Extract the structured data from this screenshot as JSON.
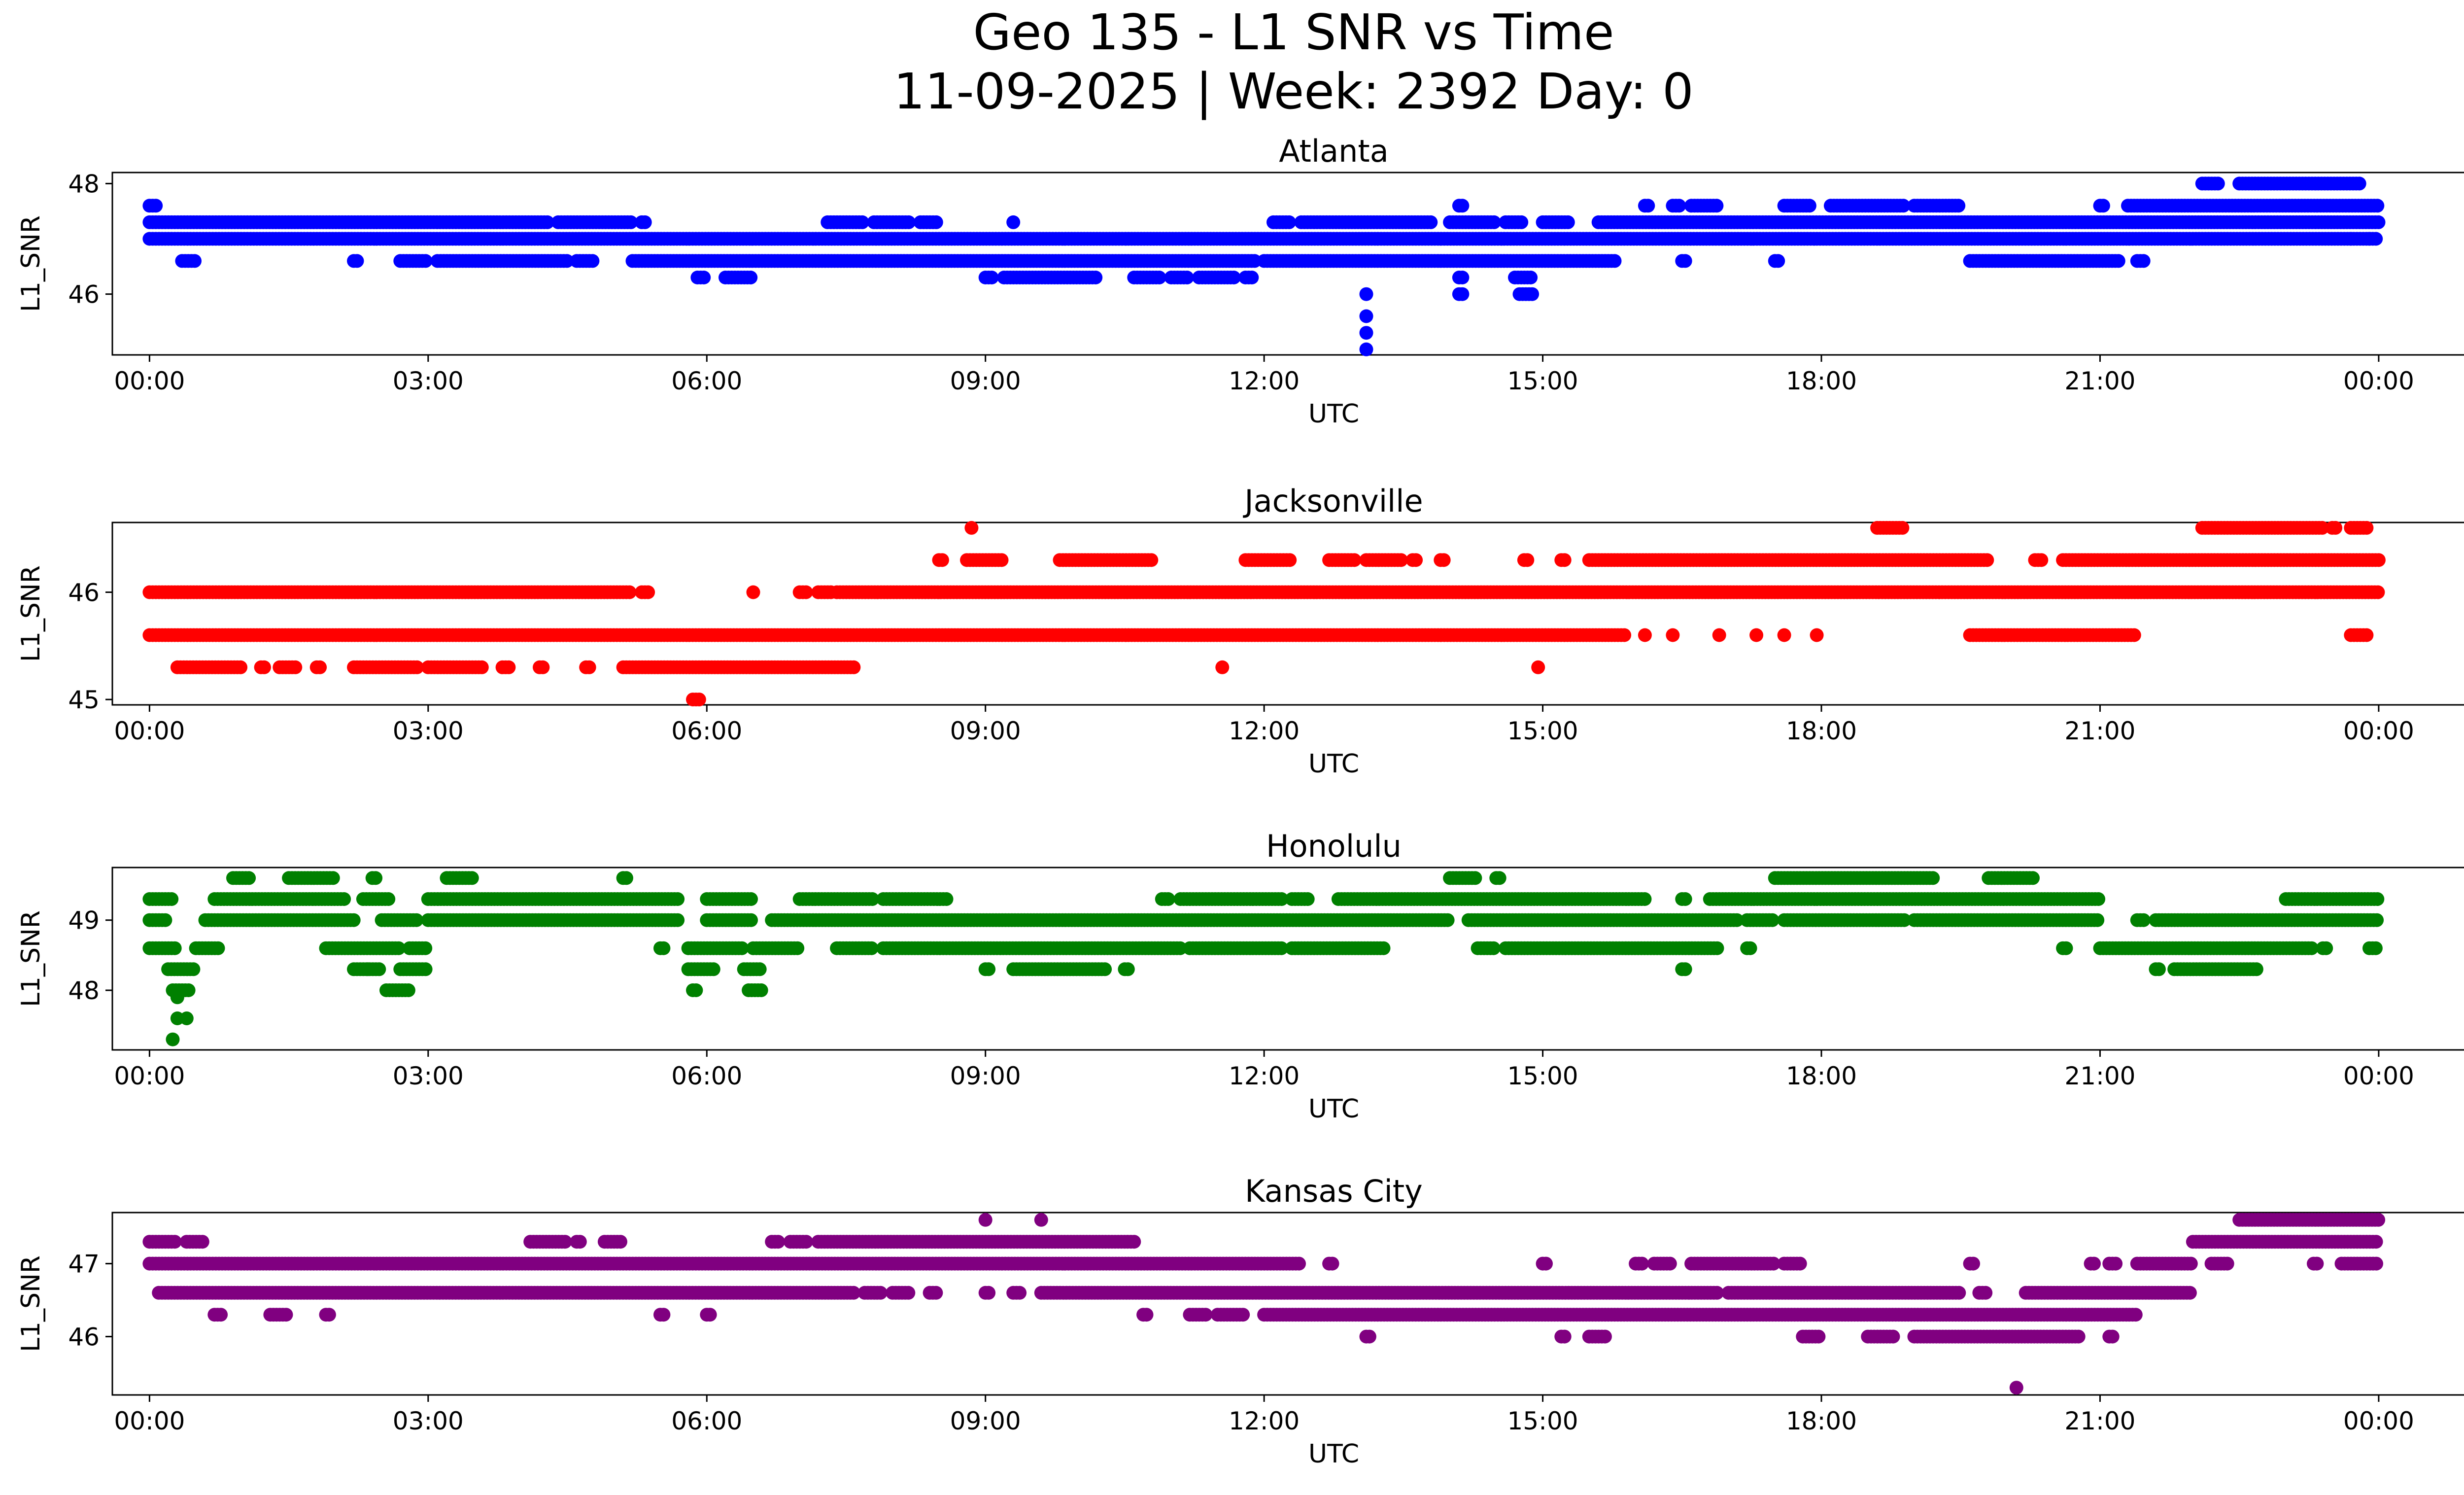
{
  "figure": {
    "title_line1": "Geo 135 - L1 SNR vs Time",
    "title_line2": "11-09-2025 | Week: 2392 Day: 0"
  },
  "chart_data": [
    {
      "type": "scatter",
      "title": "Atlanta",
      "xlabel": "UTC",
      "ylabel": "L1_SNR",
      "color": "#0000ff",
      "xlim_hours": [
        -0.4,
        25.9
      ],
      "ylim": [
        44.9,
        48.2
      ],
      "xticks": [
        0,
        3,
        6,
        9,
        12,
        15,
        18,
        21,
        24
      ],
      "xtick_labels": [
        "00:00",
        "03:00",
        "06:00",
        "09:00",
        "12:00",
        "15:00",
        "18:00",
        "21:00",
        "00:00"
      ],
      "yticks": [
        46,
        48
      ],
      "ytick_labels": [
        "46",
        "48"
      ],
      "bands": [
        {
          "y": 47.0,
          "segments": [
            [
              0.0,
              24.0
            ]
          ]
        },
        {
          "y": 47.3,
          "segments": [
            [
              0.0,
              4.3
            ],
            [
              4.4,
              5.2
            ],
            [
              5.3,
              5.35
            ],
            [
              7.3,
              7.7
            ],
            [
              7.8,
              8.2
            ],
            [
              8.3,
              8.5
            ],
            [
              12.1,
              12.3
            ],
            [
              12.4,
              13.8
            ],
            [
              14.0,
              14.5
            ],
            [
              14.6,
              14.8
            ],
            [
              15.0,
              15.3
            ],
            [
              15.6,
              24.0
            ]
          ]
        },
        {
          "y": 46.6,
          "segments": [
            [
              0.35,
              0.5
            ],
            [
              2.2,
              2.25
            ],
            [
              2.7,
              3.0
            ],
            [
              3.1,
              4.5
            ],
            [
              4.6,
              4.8
            ],
            [
              5.2,
              11.9
            ],
            [
              12.0,
              15.8
            ],
            [
              16.5,
              16.55
            ],
            [
              17.5,
              17.55
            ],
            [
              19.6,
              21.2
            ],
            [
              21.4,
              21.5
            ]
          ]
        },
        {
          "y": 46.3,
          "segments": [
            [
              5.9,
              6.0
            ],
            [
              6.2,
              6.5
            ],
            [
              9.0,
              9.1
            ],
            [
              9.2,
              10.2
            ],
            [
              10.6,
              10.9
            ],
            [
              11.0,
              11.2
            ],
            [
              11.3,
              11.7
            ],
            [
              11.8,
              11.9
            ],
            [
              14.1,
              14.15
            ],
            [
              14.7,
              14.9
            ]
          ]
        },
        {
          "y": 47.6,
          "segments": [
            [
              0.0,
              0.1
            ],
            [
              14.1,
              14.15
            ],
            [
              16.1,
              16.15
            ],
            [
              16.4,
              16.5
            ],
            [
              16.6,
              16.9
            ],
            [
              17.6,
              17.9
            ],
            [
              18.1,
              18.9
            ],
            [
              19.0,
              19.5
            ],
            [
              21.0,
              21.05
            ],
            [
              21.3,
              24.0
            ]
          ]
        },
        {
          "y": 48.0,
          "segments": [
            [
              22.1,
              22.3
            ],
            [
              22.5,
              23.8
            ]
          ]
        },
        {
          "y": 46.0,
          "segments": [
            [
              14.1,
              14.15
            ],
            [
              14.75,
              14.9
            ]
          ]
        }
      ],
      "points": [
        [
          9.3,
          47.3
        ],
        [
          13.1,
          46.0
        ],
        [
          13.1,
          45.6
        ],
        [
          13.1,
          45.3
        ],
        [
          13.1,
          45.0
        ],
        [
          23.9,
          47.0
        ],
        [
          23.7,
          47.0
        ]
      ]
    },
    {
      "type": "scatter",
      "title": "Jacksonville",
      "xlabel": "UTC",
      "ylabel": "L1_SNR",
      "color": "#ff0000",
      "xlim_hours": [
        -0.4,
        25.9
      ],
      "ylim": [
        44.95,
        46.65
      ],
      "xticks": [
        0,
        3,
        6,
        9,
        12,
        15,
        18,
        21,
        24
      ],
      "xtick_labels": [
        "00:00",
        "03:00",
        "06:00",
        "09:00",
        "12:00",
        "15:00",
        "18:00",
        "21:00",
        "00:00"
      ],
      "yticks": [
        45,
        46
      ],
      "ytick_labels": [
        "45",
        "46"
      ],
      "bands": [
        {
          "y": 46.0,
          "segments": [
            [
              0.0,
              5.2
            ],
            [
              5.3,
              5.4
            ],
            [
              7.0,
              7.1
            ],
            [
              7.2,
              7.35
            ],
            [
              7.4,
              24.0
            ]
          ]
        },
        {
          "y": 45.6,
          "segments": [
            [
              0.0,
              15.9
            ],
            [
              19.6,
              21.4
            ],
            [
              23.7,
              23.9
            ]
          ]
        },
        {
          "y": 45.3,
          "segments": [
            [
              0.3,
              1.0
            ],
            [
              1.2,
              1.25
            ],
            [
              1.4,
              1.6
            ],
            [
              1.8,
              1.85
            ],
            [
              2.2,
              2.9
            ],
            [
              3.0,
              3.6
            ],
            [
              3.8,
              3.9
            ],
            [
              4.2,
              4.25
            ],
            [
              4.7,
              4.75
            ],
            [
              5.1,
              7.6
            ]
          ]
        },
        {
          "y": 46.3,
          "segments": [
            [
              8.5,
              8.55
            ],
            [
              8.8,
              9.2
            ],
            [
              9.8,
              10.8
            ],
            [
              11.8,
              12.3
            ],
            [
              12.7,
              13.0
            ],
            [
              13.1,
              13.5
            ],
            [
              13.6,
              13.65
            ],
            [
              13.9,
              13.95
            ],
            [
              14.8,
              14.85
            ],
            [
              15.2,
              15.25
            ],
            [
              15.5,
              19.8
            ],
            [
              20.3,
              20.4
            ],
            [
              20.6,
              24.0
            ]
          ]
        },
        {
          "y": 46.6,
          "segments": [
            [
              18.6,
              18.9
            ],
            [
              22.1,
              23.4
            ],
            [
              23.5,
              23.55
            ],
            [
              23.7,
              23.9
            ]
          ]
        },
        {
          "y": 45.0,
          "segments": [
            [
              5.85,
              5.95
            ]
          ]
        }
      ],
      "points": [
        [
          6.5,
          46.0
        ],
        [
          11.55,
          45.3
        ],
        [
          14.95,
          45.3
        ],
        [
          16.1,
          45.6
        ],
        [
          16.4,
          45.6
        ],
        [
          16.9,
          45.6
        ],
        [
          17.3,
          45.6
        ],
        [
          17.6,
          45.6
        ],
        [
          17.95,
          45.6
        ],
        [
          8.85,
          46.6
        ]
      ]
    },
    {
      "type": "scatter",
      "title": "Honolulu",
      "xlabel": "UTC",
      "ylabel": "L1_SNR",
      "color": "#008000",
      "xlim_hours": [
        -0.4,
        25.9
      ],
      "ylim": [
        47.15,
        49.75
      ],
      "xticks": [
        0,
        3,
        6,
        9,
        12,
        15,
        18,
        21,
        24
      ],
      "xtick_labels": [
        "00:00",
        "03:00",
        "06:00",
        "09:00",
        "12:00",
        "15:00",
        "18:00",
        "21:00",
        "00:00"
      ],
      "yticks": [
        48,
        49
      ],
      "ytick_labels": [
        "48",
        "49"
      ],
      "bands": [
        {
          "y": 49.0,
          "segments": [
            [
              0.0,
              0.2
            ],
            [
              0.6,
              2.2
            ],
            [
              2.5,
              2.9
            ],
            [
              3.0,
              5.7
            ],
            [
              6.0,
              6.5
            ],
            [
              6.7,
              14.0
            ],
            [
              14.2,
              17.1
            ],
            [
              17.2,
              17.5
            ],
            [
              17.6,
              18.9
            ],
            [
              19.0,
              21.0
            ],
            [
              21.4,
              21.5
            ],
            [
              21.6,
              24.0
            ]
          ]
        },
        {
          "y": 49.3,
          "segments": [
            [
              0.0,
              0.25
            ],
            [
              0.7,
              2.1
            ],
            [
              2.3,
              2.6
            ],
            [
              3.0,
              5.7
            ],
            [
              6.0,
              6.5
            ],
            [
              7.0,
              7.8
            ],
            [
              7.9,
              8.6
            ],
            [
              10.9,
              11.0
            ],
            [
              11.1,
              12.2
            ],
            [
              12.3,
              12.5
            ],
            [
              12.8,
              16.1
            ],
            [
              16.5,
              16.55
            ],
            [
              16.8,
              21.0
            ],
            [
              23.0,
              24.0
            ]
          ]
        },
        {
          "y": 48.6,
          "segments": [
            [
              0.0,
              0.3
            ],
            [
              0.5,
              0.75
            ],
            [
              1.9,
              2.7
            ],
            [
              2.8,
              3.0
            ],
            [
              5.5,
              5.55
            ],
            [
              5.8,
              6.4
            ],
            [
              6.5,
              7.0
            ],
            [
              7.4,
              7.8
            ],
            [
              7.9,
              11.1
            ],
            [
              11.2,
              12.2
            ],
            [
              12.3,
              13.3
            ],
            [
              14.3,
              14.5
            ],
            [
              14.6,
              16.9
            ],
            [
              17.2,
              17.25
            ],
            [
              20.6,
              20.65
            ],
            [
              21.0,
              23.3
            ],
            [
              23.4,
              23.45
            ],
            [
              23.9,
              24.0
            ]
          ]
        },
        {
          "y": 48.3,
          "segments": [
            [
              0.2,
              0.5
            ],
            [
              2.2,
              2.5
            ],
            [
              2.7,
              3.0
            ],
            [
              5.8,
              6.1
            ],
            [
              6.4,
              6.6
            ],
            [
              9.0,
              9.05
            ],
            [
              9.3,
              10.3
            ],
            [
              10.5,
              10.55
            ],
            [
              16.5,
              16.55
            ],
            [
              21.6,
              21.65
            ],
            [
              21.8,
              22.7
            ]
          ]
        },
        {
          "y": 49.6,
          "segments": [
            [
              0.9,
              1.1
            ],
            [
              1.5,
              2.0
            ],
            [
              2.4,
              2.45
            ],
            [
              3.2,
              3.5
            ],
            [
              5.1,
              5.15
            ],
            [
              14.0,
              14.3
            ],
            [
              14.5,
              14.55
            ],
            [
              17.5,
              19.2
            ],
            [
              19.8,
              20.3
            ]
          ]
        },
        {
          "y": 48.0,
          "segments": [
            [
              0.25,
              0.45
            ],
            [
              2.55,
              2.8
            ],
            [
              5.85,
              5.9
            ],
            [
              6.45,
              6.6
            ]
          ]
        }
      ],
      "points": [
        [
          0.3,
          47.6
        ],
        [
          0.4,
          47.6
        ],
        [
          0.3,
          47.9
        ],
        [
          0.25,
          47.3
        ],
        [
          2.35,
          48.3
        ]
      ]
    },
    {
      "type": "scatter",
      "title": "Kansas City",
      "xlabel": "UTC",
      "ylabel": "L1_SNR",
      "color": "#800080",
      "xlim_hours": [
        -0.4,
        25.9
      ],
      "ylim": [
        45.2,
        47.7
      ],
      "xticks": [
        0,
        3,
        6,
        9,
        12,
        15,
        18,
        21,
        24
      ],
      "xtick_labels": [
        "00:00",
        "03:00",
        "06:00",
        "09:00",
        "12:00",
        "15:00",
        "18:00",
        "21:00",
        "00:00"
      ],
      "yticks": [
        46,
        47
      ],
      "ytick_labels": [
        "46",
        "47"
      ],
      "bands": [
        {
          "y": 47.0,
          "segments": [
            [
              0.0,
              12.4
            ],
            [
              12.7,
              12.75
            ],
            [
              15.0,
              15.05
            ],
            [
              16.0,
              16.1
            ],
            [
              16.2,
              16.4
            ],
            [
              16.6,
              17.5
            ],
            [
              17.6,
              17.8
            ],
            [
              19.6,
              19.65
            ],
            [
              20.9,
              20.95
            ],
            [
              21.1,
              21.2
            ],
            [
              21.4,
              22.0
            ],
            [
              22.2,
              22.4
            ],
            [
              23.3,
              23.35
            ],
            [
              23.6,
              24.0
            ]
          ]
        },
        {
          "y": 46.6,
          "segments": [
            [
              0.1,
              7.6
            ],
            [
              7.7,
              7.9
            ],
            [
              8.0,
              8.2
            ],
            [
              8.4,
              8.5
            ],
            [
              9.0,
              9.05
            ],
            [
              9.3,
              9.4
            ],
            [
              9.6,
              16.9
            ],
            [
              17.0,
              19.5
            ],
            [
              19.7,
              19.8
            ],
            [
              20.2,
              22.0
            ]
          ]
        },
        {
          "y": 46.3,
          "segments": [
            [
              0.7,
              0.8
            ],
            [
              1.3,
              1.5
            ],
            [
              1.9,
              1.95
            ],
            [
              5.5,
              5.55
            ],
            [
              6.0,
              6.05
            ],
            [
              10.7,
              10.75
            ],
            [
              11.2,
              11.4
            ],
            [
              11.5,
              11.8
            ],
            [
              12.0,
              21.4
            ]
          ]
        },
        {
          "y": 47.3,
          "segments": [
            [
              0.0,
              0.3
            ],
            [
              0.4,
              0.6
            ],
            [
              4.1,
              4.5
            ],
            [
              4.6,
              4.65
            ],
            [
              4.9,
              5.1
            ],
            [
              6.7,
              6.8
            ],
            [
              6.9,
              7.1
            ],
            [
              7.2,
              10.6
            ],
            [
              22.0,
              24.0
            ]
          ]
        },
        {
          "y": 46.0,
          "segments": [
            [
              13.1,
              13.15
            ],
            [
              15.2,
              15.25
            ],
            [
              15.5,
              15.7
            ],
            [
              17.8,
              18.0
            ],
            [
              18.5,
              18.8
            ],
            [
              19.0,
              20.8
            ],
            [
              21.1,
              21.15
            ]
          ]
        },
        {
          "y": 47.6,
          "segments": [
            [
              22.5,
              24.0
            ]
          ]
        }
      ],
      "points": [
        [
          9.0,
          47.6
        ],
        [
          9.6,
          47.6
        ],
        [
          20.1,
          45.3
        ]
      ]
    }
  ]
}
